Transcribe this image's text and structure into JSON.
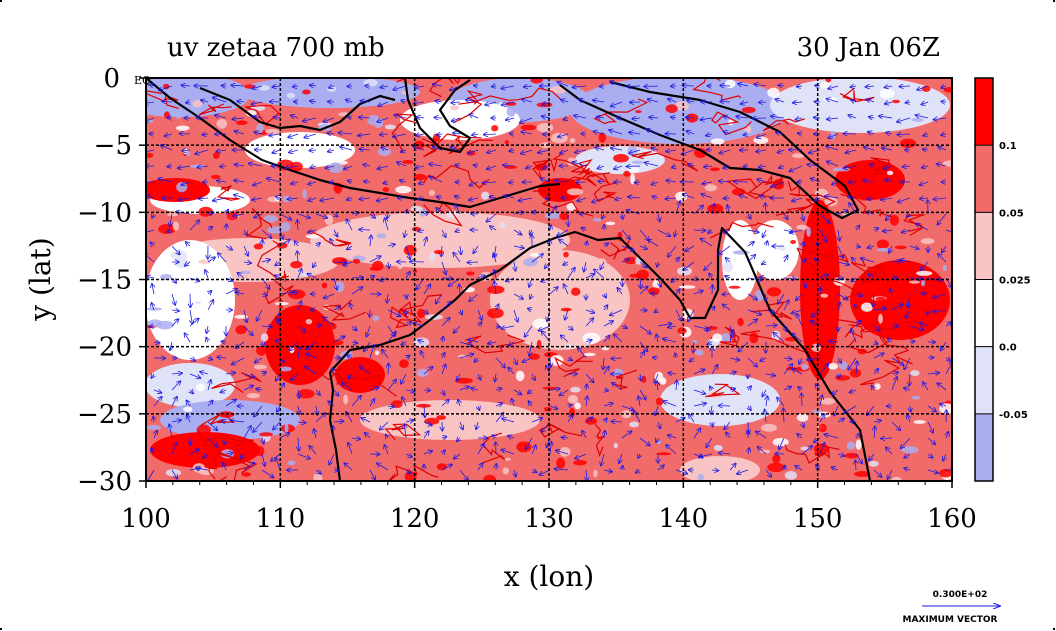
{
  "chart_data": {
    "type": "heatmap",
    "title_left": "uv zetaa 700 mb",
    "title_right": "30 Jan 06Z",
    "xlabel": "x (lon)",
    "ylabel": "y (lat)",
    "xlim": [
      100,
      160
    ],
    "ylim": [
      -30,
      0
    ],
    "x_ticks": [
      100,
      110,
      120,
      130,
      140,
      150,
      160
    ],
    "y_ticks": [
      {
        "value": 0,
        "label": "0 EQ"
      },
      {
        "value": -5,
        "label": "−5"
      },
      {
        "value": -10,
        "label": "−10"
      },
      {
        "value": -15,
        "label": "−15"
      },
      {
        "value": -20,
        "label": "−20"
      },
      {
        "value": -25,
        "label": "−25"
      },
      {
        "value": -30,
        "label": "−30"
      }
    ],
    "grid": true,
    "colorbar": {
      "labels": [
        "0.1",
        "0.05",
        "0.025",
        "0.0",
        "-0.05"
      ],
      "bands": [
        "#ff0000",
        "#f26b6b",
        "#f8c4c4",
        "#ffffff",
        "#e0e2f8",
        "#aaaef0"
      ]
    },
    "colors": {
      "strong_positive": "#ff0000",
      "positive": "#f26b6b",
      "weak_positive": "#f8c4c4",
      "weak_negative": "#e0e2f8",
      "negative": "#aaaef0",
      "contour": "#e00000",
      "vectors": "#1a1ae6",
      "coastline": "#000000"
    },
    "vector_legend": {
      "value_label": "0.300E+02",
      "caption": "MAXIMUM VECTOR"
    }
  }
}
